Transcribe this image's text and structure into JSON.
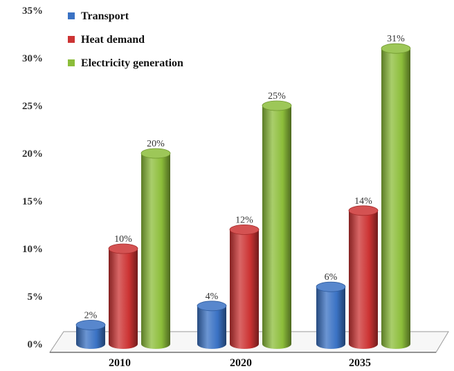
{
  "chart_data": {
    "type": "bar",
    "style": "3d-cylinder",
    "categories": [
      "2010",
      "2020",
      "2035"
    ],
    "series": [
      {
        "name": "Transport",
        "values": [
          2,
          4,
          6
        ],
        "labels": [
          "2%",
          "4%",
          "6%"
        ],
        "color": "#3a72c4"
      },
      {
        "name": "Heat demand",
        "values": [
          10,
          12,
          14
        ],
        "labels": [
          "10%",
          "12%",
          "14%"
        ],
        "color": "#cc3333"
      },
      {
        "name": "Electricity generation",
        "values": [
          20,
          25,
          31
        ],
        "labels": [
          "20%",
          "25%",
          "31%"
        ],
        "color": "#8cbd3a"
      }
    ],
    "y_ticks": [
      "0%",
      "5%",
      "10%",
      "15%",
      "20%",
      "25%",
      "30%",
      "35%"
    ],
    "ylim": [
      0,
      35
    ],
    "legend_position": "top-left",
    "grid": false
  }
}
